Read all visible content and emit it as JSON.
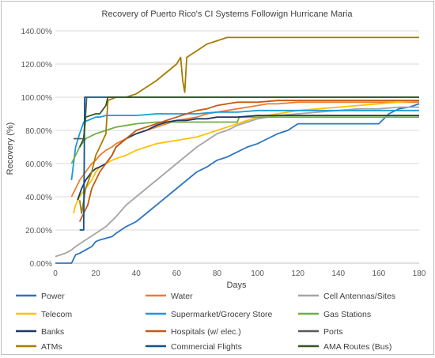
{
  "chart_data": {
    "type": "line",
    "title": "Recovery of Puerto Rico's CI Systems Followign Hurricane Maria",
    "xlabel": "Days",
    "ylabel": "Recovery (%)",
    "xlim": [
      0,
      180
    ],
    "ylim": [
      0,
      140
    ],
    "x_ticks": [
      0,
      20,
      40,
      60,
      80,
      100,
      120,
      140,
      160,
      180
    ],
    "y_ticks": [
      0,
      20,
      40,
      60,
      80,
      100,
      120,
      140
    ],
    "x_tick_labels": [
      "0",
      "20",
      "40",
      "60",
      "80",
      "100",
      "120",
      "140",
      "160",
      "180"
    ],
    "y_tick_labels": [
      "0.00%",
      "20.00%",
      "40.00%",
      "60.00%",
      "80.00%",
      "100.00%",
      "120.00%",
      "140.00%"
    ],
    "grid": "horizontal",
    "legend_position": "bottom",
    "series": [
      {
        "name": "Power",
        "color": "#2e75c0",
        "x": [
          0,
          8,
          10,
          12,
          15,
          18,
          20,
          22,
          25,
          28,
          30,
          35,
          40,
          45,
          50,
          55,
          60,
          65,
          70,
          75,
          80,
          85,
          90,
          95,
          100,
          105,
          110,
          115,
          120,
          125,
          130,
          140,
          150,
          160,
          165,
          170,
          175,
          180
        ],
        "y": [
          0,
          0,
          5,
          6,
          8,
          10,
          13,
          14,
          15,
          16,
          18,
          22,
          25,
          30,
          35,
          40,
          45,
          50,
          55,
          58,
          62,
          64,
          67,
          70,
          72,
          75,
          78,
          80,
          84,
          84,
          84,
          84,
          84,
          84,
          90,
          93,
          94,
          96
        ]
      },
      {
        "name": "Water",
        "color": "#ed7d31",
        "x": [
          8,
          10,
          12,
          15,
          18,
          20,
          22,
          25,
          28,
          30,
          35,
          40,
          45,
          50,
          55,
          60,
          65,
          70,
          75,
          80,
          85,
          90,
          95,
          100,
          105,
          110,
          120,
          130,
          140,
          150,
          160,
          170,
          180
        ],
        "y": [
          40,
          45,
          50,
          55,
          60,
          62,
          65,
          68,
          70,
          72,
          75,
          78,
          80,
          82,
          84,
          86,
          87,
          88,
          90,
          91,
          92,
          93,
          94,
          95,
          96,
          96,
          97,
          97,
          97,
          97,
          97,
          97,
          97
        ]
      },
      {
        "name": "Cell Antennas/Sites",
        "color": "#a5a5a5",
        "x": [
          0,
          5,
          8,
          10,
          15,
          20,
          25,
          30,
          35,
          40,
          45,
          50,
          55,
          60,
          65,
          70,
          75,
          80,
          85,
          90,
          95,
          100,
          110,
          120,
          130,
          140,
          150,
          160,
          170,
          180
        ],
        "y": [
          4,
          6,
          8,
          10,
          14,
          18,
          22,
          28,
          35,
          40,
          45,
          50,
          55,
          60,
          65,
          70,
          74,
          78,
          80,
          83,
          85,
          87,
          89,
          90,
          91,
          92,
          93,
          93,
          94,
          94
        ]
      },
      {
        "name": "Telecom",
        "color": "#ffc000",
        "x": [
          9,
          10,
          12,
          15,
          18,
          20,
          22,
          25,
          28,
          30,
          35,
          40,
          45,
          50,
          55,
          60,
          65,
          70,
          75,
          80,
          85,
          90,
          95,
          100,
          110,
          120,
          130,
          140,
          150,
          160,
          170,
          180
        ],
        "y": [
          30,
          35,
          40,
          45,
          50,
          55,
          58,
          60,
          62,
          63,
          65,
          68,
          70,
          72,
          73,
          74,
          75,
          76,
          78,
          80,
          82,
          84,
          86,
          88,
          90,
          92,
          93,
          94,
          95,
          96,
          97,
          98
        ]
      },
      {
        "name": "Supermarket/Grocery Store",
        "color": "#1a9bd7",
        "x": [
          8,
          10,
          12,
          14,
          16,
          18,
          20,
          22,
          25,
          30,
          40,
          50,
          60,
          70,
          80,
          90,
          100,
          120,
          140,
          160,
          180
        ],
        "y": [
          50,
          70,
          78,
          85,
          86,
          87,
          88,
          88,
          89,
          89,
          89,
          90,
          90,
          90,
          91,
          91,
          92,
          92,
          92,
          92,
          92
        ]
      },
      {
        "name": "Gas Stations",
        "color": "#70ad47",
        "x": [
          8,
          10,
          12,
          15,
          20,
          25,
          30,
          40,
          50,
          55,
          60,
          70,
          80,
          90,
          91,
          100,
          120,
          140,
          160,
          180
        ],
        "y": [
          60,
          65,
          70,
          75,
          78,
          80,
          82,
          84,
          85,
          85,
          85,
          85,
          85,
          85,
          88,
          88,
          88,
          88,
          88,
          88
        ]
      },
      {
        "name": "Banks",
        "color": "#1f3864",
        "x": [
          11,
          13,
          15,
          18,
          20,
          22,
          25,
          28,
          30,
          35,
          40,
          45,
          50,
          55,
          60,
          65,
          70,
          75,
          80,
          85,
          90,
          100,
          110,
          120,
          130,
          140,
          150,
          160,
          170,
          180
        ],
        "y": [
          38,
          45,
          50,
          55,
          57,
          58,
          60,
          65,
          70,
          75,
          78,
          80,
          83,
          85,
          86,
          86,
          87,
          87,
          88,
          88,
          88,
          89,
          89,
          89,
          89,
          89,
          89,
          89,
          89,
          89
        ]
      },
      {
        "name": "Hospitals (w/ elec.)",
        "color": "#c55a11",
        "x": [
          12,
          14,
          16,
          18,
          20,
          22,
          25,
          28,
          30,
          35,
          40,
          45,
          50,
          55,
          60,
          65,
          70,
          75,
          80,
          85,
          90,
          100,
          110,
          120,
          130,
          140,
          150,
          160,
          170,
          180
        ],
        "y": [
          25,
          30,
          35,
          45,
          50,
          55,
          60,
          65,
          70,
          75,
          80,
          82,
          84,
          86,
          88,
          90,
          92,
          93,
          95,
          96,
          97,
          97,
          98,
          98,
          98,
          98,
          98,
          98,
          98,
          98
        ]
      },
      {
        "name": "Ports",
        "color": "#595959",
        "x": [
          9,
          14,
          15,
          15.5
        ],
        "y": [
          75,
          75,
          90,
          100
        ]
      },
      {
        "name": "ATMs",
        "color": "#a67c00",
        "x": [
          12,
          13,
          15,
          18,
          20,
          22,
          25,
          26,
          30,
          35,
          40,
          45,
          50,
          55,
          60,
          62,
          63,
          64,
          65,
          70,
          75,
          80,
          85,
          180
        ],
        "y": [
          38,
          30,
          45,
          55,
          65,
          70,
          78,
          98,
          100,
          100,
          102,
          106,
          110,
          115,
          120,
          124,
          110,
          103,
          124,
          128,
          132,
          134,
          136,
          136
        ]
      },
      {
        "name": "Commercial Flights",
        "color": "#0b5394",
        "x": [
          12,
          14,
          14.5,
          25,
          180
        ],
        "y": [
          20,
          20,
          100,
          100,
          100
        ]
      },
      {
        "name": "AMA Routes (Bus)",
        "color": "#375623",
        "x": [
          12,
          14,
          15,
          20,
          22,
          25,
          26,
          180
        ],
        "y": [
          70,
          75,
          88,
          90,
          90,
          95,
          100,
          100
        ]
      }
    ]
  }
}
